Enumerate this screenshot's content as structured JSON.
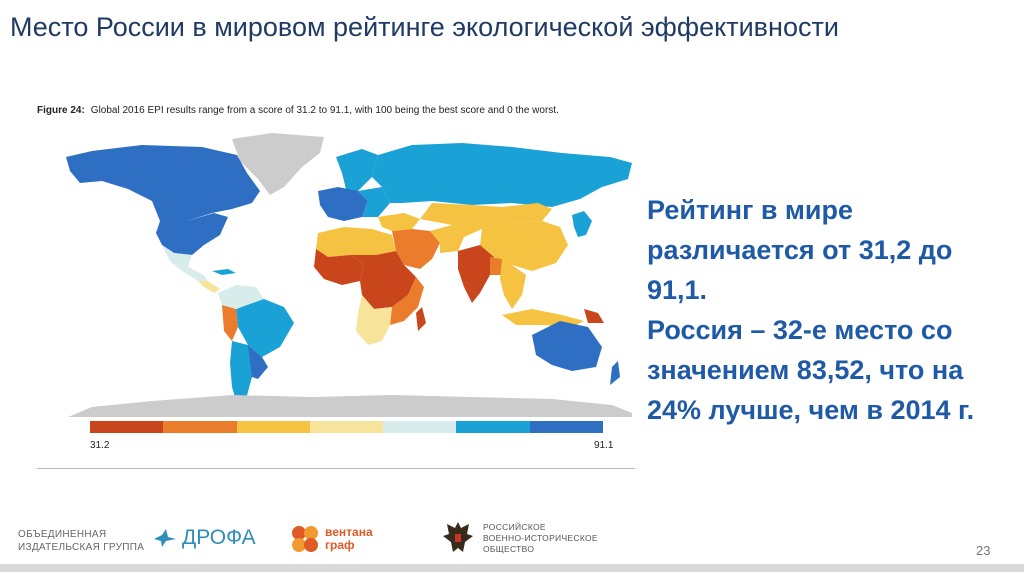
{
  "slide": {
    "title": "Место России в мировом рейтинге экологической эффективности",
    "page_number": "23"
  },
  "figure": {
    "label": "Figure 24:",
    "caption": "Global 2016 EPI results range from a score of 31.2 to 91.1, with 100 being the best score and 0 the worst.",
    "legend_min": "31.2",
    "legend_max": "91.1",
    "legend_colors": [
      "#c9461c",
      "#ea7c2b",
      "#f5c242",
      "#f8e39a",
      "#d8ecec",
      "#1aa1d6",
      "#2f6fc3"
    ],
    "colors": {
      "dark_blue": "#2f6fc3",
      "blue": "#1aa1d6",
      "pale_blue": "#d8ecec",
      "pale_yellow": "#f8e39a",
      "yellow": "#f5c242",
      "orange": "#ea7c2b",
      "red": "#c9461c",
      "grey": "#cccccc"
    }
  },
  "summary": {
    "line1": "Рейтинг в мире различается от 31,2 до 91,1.",
    "line2": "Россия – 32-е место со значением 83,52, что на 24% лучше, чем в 2014 г."
  },
  "footer": {
    "publisher_line1": "ОБЪЕДИНЕННАЯ",
    "publisher_line2": "ИЗДАТЕЛЬСКАЯ ГРУППА",
    "drofa": "ДРОФА",
    "ventana_line1": "вентана",
    "ventana_line2": "граф",
    "rvio_line1": "РОССИЙСКОЕ",
    "rvio_line2": "ВОЕННО-ИСТОРИЧЕСКОЕ",
    "rvio_line3": "ОБЩЕСТВО"
  }
}
